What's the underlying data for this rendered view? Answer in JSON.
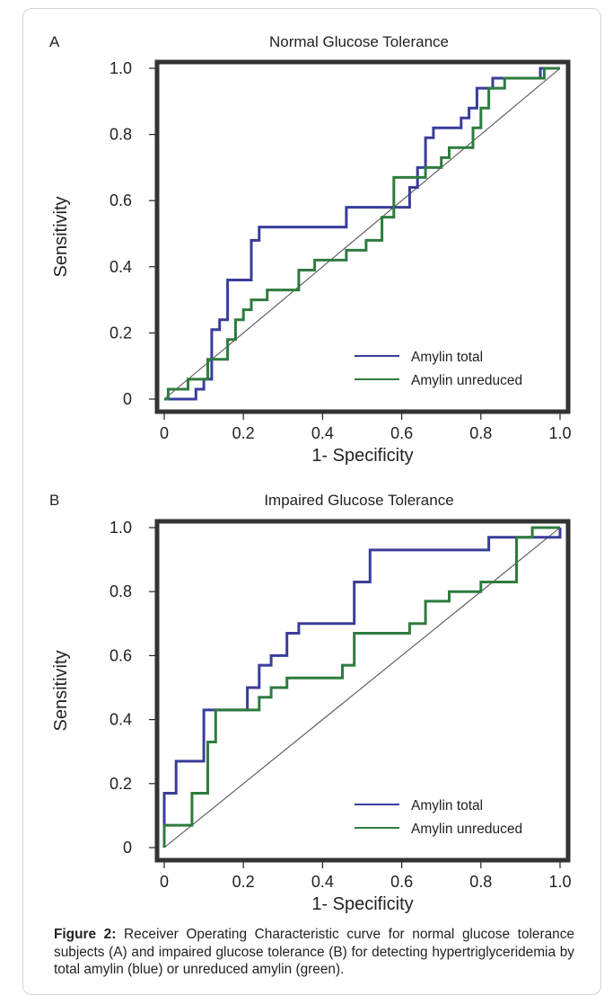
{
  "figure": {
    "caption_label": "Figure 2:",
    "caption_text": "Receiver Operating Characteristic curve for normal glucose tolerance subjects (A) and impaired glucose tolerance (B) for detecting hypertriglyceridemia by total amylin (blue) or unreduced amylin (green)."
  },
  "colors": {
    "amylin_total": "#3a3d9a",
    "amylin_unreduced": "#2e7b3f",
    "diagonal": "#555555",
    "frame": "#333333"
  },
  "chart_data": [
    {
      "type": "line",
      "panel_label": "A",
      "title": "Normal Glucose Tolerance",
      "xlabel": "1- Specificity",
      "ylabel": "Sensitivity",
      "xlim": [
        0,
        1
      ],
      "ylim": [
        0,
        1
      ],
      "xticks": [
        0,
        0.2,
        0.4,
        0.6,
        0.8,
        1.0
      ],
      "xtick_labels": [
        "0",
        "0.2",
        "0.4",
        "0.6",
        "0.8",
        "1.0"
      ],
      "yticks": [
        0,
        0.2,
        0.4,
        0.6,
        0.8,
        1.0
      ],
      "ytick_labels": [
        "0",
        "0.2",
        "0.4",
        "0.6",
        "0.8",
        "1.0"
      ],
      "legend_position": "bottom-right",
      "reference_line": [
        [
          0,
          0
        ],
        [
          1,
          1
        ]
      ],
      "series": [
        {
          "name": "Amylin total",
          "color_key": "amylin_total",
          "points": [
            [
              0,
              0
            ],
            [
              0.08,
              0
            ],
            [
              0.08,
              0.03
            ],
            [
              0.1,
              0.03
            ],
            [
              0.1,
              0.06
            ],
            [
              0.12,
              0.06
            ],
            [
              0.12,
              0.21
            ],
            [
              0.14,
              0.21
            ],
            [
              0.14,
              0.24
            ],
            [
              0.16,
              0.24
            ],
            [
              0.16,
              0.36
            ],
            [
              0.22,
              0.36
            ],
            [
              0.22,
              0.48
            ],
            [
              0.24,
              0.48
            ],
            [
              0.24,
              0.52
            ],
            [
              0.46,
              0.52
            ],
            [
              0.46,
              0.58
            ],
            [
              0.62,
              0.58
            ],
            [
              0.62,
              0.64
            ],
            [
              0.64,
              0.64
            ],
            [
              0.64,
              0.7
            ],
            [
              0.66,
              0.7
            ],
            [
              0.66,
              0.79
            ],
            [
              0.68,
              0.79
            ],
            [
              0.68,
              0.82
            ],
            [
              0.75,
              0.82
            ],
            [
              0.75,
              0.85
            ],
            [
              0.77,
              0.85
            ],
            [
              0.77,
              0.88
            ],
            [
              0.79,
              0.88
            ],
            [
              0.79,
              0.94
            ],
            [
              0.83,
              0.94
            ],
            [
              0.83,
              0.97
            ],
            [
              0.95,
              0.97
            ],
            [
              0.95,
              1.0
            ],
            [
              1.0,
              1.0
            ]
          ]
        },
        {
          "name": "Amylin unreduced",
          "color_key": "amylin_unreduced",
          "points": [
            [
              0,
              0
            ],
            [
              0.01,
              0
            ],
            [
              0.01,
              0.03
            ],
            [
              0.06,
              0.03
            ],
            [
              0.06,
              0.06
            ],
            [
              0.11,
              0.06
            ],
            [
              0.11,
              0.12
            ],
            [
              0.16,
              0.12
            ],
            [
              0.16,
              0.18
            ],
            [
              0.18,
              0.18
            ],
            [
              0.18,
              0.24
            ],
            [
              0.2,
              0.24
            ],
            [
              0.2,
              0.27
            ],
            [
              0.22,
              0.27
            ],
            [
              0.22,
              0.3
            ],
            [
              0.26,
              0.3
            ],
            [
              0.26,
              0.33
            ],
            [
              0.34,
              0.33
            ],
            [
              0.34,
              0.39
            ],
            [
              0.38,
              0.39
            ],
            [
              0.38,
              0.42
            ],
            [
              0.46,
              0.42
            ],
            [
              0.46,
              0.45
            ],
            [
              0.51,
              0.45
            ],
            [
              0.51,
              0.48
            ],
            [
              0.55,
              0.48
            ],
            [
              0.55,
              0.55
            ],
            [
              0.58,
              0.55
            ],
            [
              0.58,
              0.67
            ],
            [
              0.66,
              0.67
            ],
            [
              0.66,
              0.7
            ],
            [
              0.7,
              0.7
            ],
            [
              0.7,
              0.73
            ],
            [
              0.72,
              0.73
            ],
            [
              0.72,
              0.76
            ],
            [
              0.78,
              0.76
            ],
            [
              0.78,
              0.82
            ],
            [
              0.8,
              0.82
            ],
            [
              0.8,
              0.88
            ],
            [
              0.82,
              0.88
            ],
            [
              0.82,
              0.94
            ],
            [
              0.86,
              0.94
            ],
            [
              0.86,
              0.97
            ],
            [
              0.96,
              0.97
            ],
            [
              0.96,
              1.0
            ],
            [
              1.0,
              1.0
            ]
          ]
        }
      ]
    },
    {
      "type": "line",
      "panel_label": "B",
      "title": "Impaired Glucose Tolerance",
      "xlabel": "1- Specificity",
      "ylabel": "Sensitivity",
      "xlim": [
        0,
        1
      ],
      "ylim": [
        0,
        1
      ],
      "xticks": [
        0,
        0.2,
        0.4,
        0.6,
        0.8,
        1.0
      ],
      "xtick_labels": [
        "0",
        "0.2",
        "0.4",
        "0.6",
        "0.8",
        "1.0"
      ],
      "yticks": [
        0,
        0.2,
        0.4,
        0.6,
        0.8,
        1.0
      ],
      "ytick_labels": [
        "0",
        "0.2",
        "0.4",
        "0.6",
        "0.8",
        "1.0"
      ],
      "legend_position": "bottom-right",
      "reference_line": [
        [
          0,
          0
        ],
        [
          1,
          1
        ]
      ],
      "series": [
        {
          "name": "Amylin total",
          "color_key": "amylin_total",
          "points": [
            [
              0,
              0
            ],
            [
              0,
              0.17
            ],
            [
              0.03,
              0.17
            ],
            [
              0.03,
              0.27
            ],
            [
              0.1,
              0.27
            ],
            [
              0.1,
              0.43
            ],
            [
              0.21,
              0.43
            ],
            [
              0.21,
              0.5
            ],
            [
              0.24,
              0.5
            ],
            [
              0.24,
              0.57
            ],
            [
              0.27,
              0.57
            ],
            [
              0.27,
              0.6
            ],
            [
              0.31,
              0.6
            ],
            [
              0.31,
              0.67
            ],
            [
              0.34,
              0.67
            ],
            [
              0.34,
              0.7
            ],
            [
              0.48,
              0.7
            ],
            [
              0.48,
              0.83
            ],
            [
              0.52,
              0.83
            ],
            [
              0.52,
              0.93
            ],
            [
              0.82,
              0.93
            ],
            [
              0.82,
              0.97
            ],
            [
              1.0,
              0.97
            ],
            [
              1.0,
              1.0
            ]
          ]
        },
        {
          "name": "Amylin unreduced",
          "color_key": "amylin_unreduced",
          "points": [
            [
              0,
              0
            ],
            [
              0,
              0.07
            ],
            [
              0.07,
              0.07
            ],
            [
              0.07,
              0.17
            ],
            [
              0.11,
              0.17
            ],
            [
              0.11,
              0.33
            ],
            [
              0.13,
              0.33
            ],
            [
              0.13,
              0.43
            ],
            [
              0.24,
              0.43
            ],
            [
              0.24,
              0.47
            ],
            [
              0.27,
              0.47
            ],
            [
              0.27,
              0.5
            ],
            [
              0.31,
              0.5
            ],
            [
              0.31,
              0.53
            ],
            [
              0.45,
              0.53
            ],
            [
              0.45,
              0.57
            ],
            [
              0.48,
              0.57
            ],
            [
              0.48,
              0.67
            ],
            [
              0.62,
              0.67
            ],
            [
              0.62,
              0.7
            ],
            [
              0.66,
              0.7
            ],
            [
              0.66,
              0.77
            ],
            [
              0.72,
              0.77
            ],
            [
              0.72,
              0.8
            ],
            [
              0.8,
              0.8
            ],
            [
              0.8,
              0.83
            ],
            [
              0.89,
              0.83
            ],
            [
              0.89,
              0.97
            ],
            [
              0.93,
              0.97
            ],
            [
              0.93,
              1.0
            ],
            [
              1.0,
              1.0
            ]
          ]
        }
      ]
    }
  ]
}
